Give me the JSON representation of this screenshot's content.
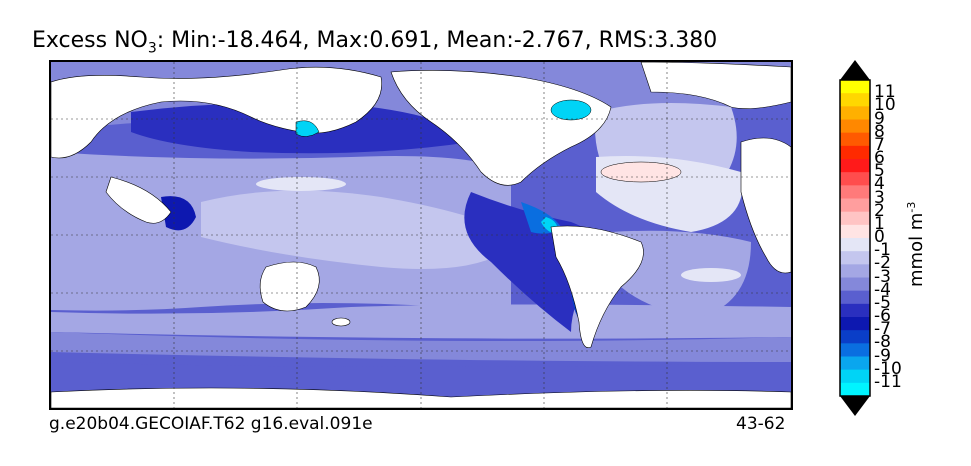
{
  "title": {
    "prefix": "Excess NO",
    "subscript": "3",
    "stats": ": Min:-18.464, Max:0.691, Mean:-2.767, RMS:3.380"
  },
  "footer": {
    "left": "g.e20b04.GECOIAF.T62 g16.eval.091e",
    "right": "43-62"
  },
  "colorbar": {
    "units_base": "mmol m",
    "units_exp": "-3",
    "labels": [
      "11",
      "10",
      "9",
      "8",
      "7",
      "6",
      "5",
      "4",
      "3",
      "2",
      "1",
      "0",
      "-1",
      "-2",
      "-3",
      "-4",
      "-5",
      "-6",
      "-7",
      "-8",
      "-9",
      "-10",
      "-11"
    ],
    "colors_top_to_bottom": [
      "#ffff00",
      "#ffd700",
      "#ffb000",
      "#ff8800",
      "#ff5a00",
      "#ff2a00",
      "#ff1a1a",
      "#ff4d4d",
      "#ff7a7a",
      "#ff9e9e",
      "#ffc4c4",
      "#ffe4e4",
      "#e4e6f6",
      "#c4c6ee",
      "#a4a7e4",
      "#8488da",
      "#5a5fcf",
      "#2a2fbf",
      "#0d18b0",
      "#0a3ec8",
      "#0a6ee0",
      "#0aa6ee",
      "#00d4f6",
      "#00f4ff"
    ],
    "over_color": "#000000",
    "under_color": "#000000"
  },
  "map": {
    "land_color": "#ffffff",
    "gridlines": "dashed",
    "ocean_base": "#5a5fcf"
  }
}
